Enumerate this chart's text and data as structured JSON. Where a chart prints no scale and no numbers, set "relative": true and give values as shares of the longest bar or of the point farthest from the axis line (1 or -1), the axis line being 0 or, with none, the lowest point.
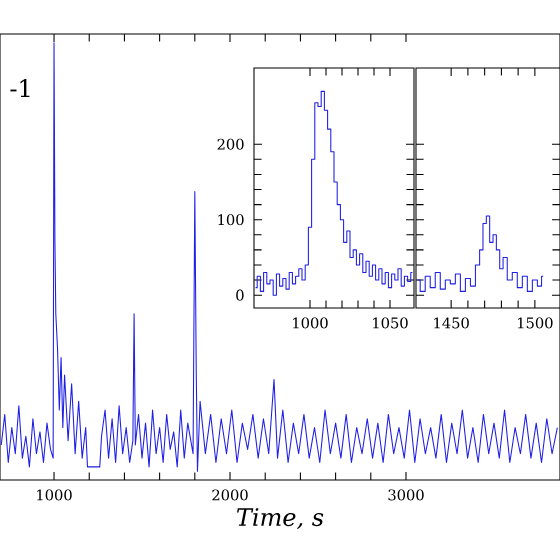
{
  "chart_data": [
    {
      "type": "line",
      "relative": true,
      "xlabel": "*Time, s*",
      "annotations": [
        "-1"
      ],
      "xlim": [
        693,
        3875
      ],
      "xticks": [
        1000,
        2000,
        3000
      ],
      "tick_labels": "x",
      "series": [
        {
          "color": "#1f1fe6",
          "x": [
            700,
            720,
            740,
            760,
            780,
            800,
            820,
            840,
            860,
            880,
            900,
            920,
            940,
            960,
            980,
            995,
            1000,
            1005,
            1010,
            1020,
            1030,
            1040,
            1050,
            1060,
            1080,
            1100,
            1120,
            1140,
            1160,
            1180,
            1190,
            1200,
            1260,
            1270,
            1290,
            1310,
            1330,
            1350,
            1370,
            1390,
            1410,
            1430,
            1448,
            1455,
            1462,
            1480,
            1500,
            1520,
            1540,
            1560,
            1580,
            1600,
            1620,
            1640,
            1660,
            1680,
            1700,
            1720,
            1740,
            1760,
            1790,
            1800,
            1808,
            1815,
            1830,
            1860,
            1890,
            1920,
            1950,
            1980,
            2010,
            2040,
            2070,
            2100,
            2130,
            2160,
            2190,
            2220,
            2250,
            2270,
            2300,
            2330,
            2360,
            2390,
            2420,
            2450,
            2480,
            2510,
            2540,
            2570,
            2600,
            2630,
            2660,
            2690,
            2720,
            2750,
            2780,
            2810,
            2840,
            2870,
            2900,
            2930,
            2960,
            2990,
            3020,
            3050,
            3080,
            3110,
            3140,
            3170,
            3200,
            3230,
            3260,
            3290,
            3320,
            3350,
            3380,
            3410,
            3440,
            3470,
            3500,
            3530,
            3560,
            3590,
            3620,
            3650,
            3680,
            3710,
            3740,
            3770,
            3800,
            3830,
            3860
          ],
          "values": [
            0.08,
            0.15,
            0.04,
            0.12,
            0.06,
            0.17,
            0.05,
            0.1,
            0.03,
            0.14,
            0.06,
            0.11,
            0.04,
            0.13,
            0.07,
            0.05,
            1.0,
            0.55,
            0.38,
            0.3,
            0.16,
            0.28,
            0.12,
            0.24,
            0.09,
            0.22,
            0.06,
            0.18,
            0.05,
            0.12,
            0.03,
            0.03,
            0.03,
            0.1,
            0.16,
            0.05,
            0.14,
            0.04,
            0.17,
            0.06,
            0.12,
            0.04,
            0.09,
            0.38,
            0.08,
            0.15,
            0.05,
            0.13,
            0.03,
            0.16,
            0.06,
            0.12,
            0.04,
            0.15,
            0.07,
            0.11,
            0.03,
            0.16,
            0.05,
            0.13,
            0.06,
            0.66,
            0.25,
            0.02,
            0.18,
            0.06,
            0.15,
            0.04,
            0.14,
            0.06,
            0.16,
            0.04,
            0.13,
            0.07,
            0.15,
            0.05,
            0.14,
            0.06,
            0.23,
            0.05,
            0.16,
            0.04,
            0.13,
            0.06,
            0.15,
            0.05,
            0.12,
            0.04,
            0.16,
            0.06,
            0.13,
            0.05,
            0.15,
            0.04,
            0.12,
            0.06,
            0.14,
            0.05,
            0.13,
            0.04,
            0.15,
            0.06,
            0.12,
            0.05,
            0.16,
            0.04,
            0.14,
            0.06,
            0.12,
            0.05,
            0.15,
            0.04,
            0.13,
            0.06,
            0.16,
            0.05,
            0.12,
            0.04,
            0.15,
            0.06,
            0.13,
            0.05,
            0.16,
            0.04,
            0.12,
            0.06,
            0.15,
            0.05,
            0.13,
            0.04,
            0.14,
            0.06,
            0.12
          ]
        }
      ]
    },
    {
      "type": "step",
      "xlim": [
        965,
        1065
      ],
      "ylim": [
        -17,
        301
      ],
      "xticks": [
        1000,
        1050
      ],
      "yticks": [
        0,
        100,
        200
      ],
      "series": [
        {
          "color": "#1f1fe6",
          "x": [
            966,
            968,
            970,
            972,
            974,
            976,
            978,
            980,
            982,
            984,
            986,
            988,
            990,
            992,
            994,
            996,
            998,
            1000,
            1002,
            1004,
            1006,
            1008,
            1010,
            1012,
            1014,
            1016,
            1018,
            1020,
            1022,
            1024,
            1026,
            1028,
            1030,
            1032,
            1034,
            1036,
            1038,
            1040,
            1042,
            1044,
            1046,
            1048,
            1050,
            1052,
            1054,
            1056,
            1058,
            1060,
            1062,
            1064
          ],
          "values": [
            10,
            25,
            5,
            30,
            15,
            20,
            0,
            28,
            12,
            22,
            8,
            30,
            15,
            25,
            35,
            20,
            40,
            90,
            180,
            255,
            250,
            270,
            245,
            220,
            190,
            150,
            120,
            100,
            70,
            85,
            50,
            60,
            40,
            55,
            30,
            45,
            25,
            40,
            20,
            35,
            15,
            30,
            10,
            28,
            20,
            35,
            12,
            25,
            18,
            30
          ]
        }
      ]
    },
    {
      "type": "step",
      "xlim": [
        1429,
        1515
      ],
      "ylim": [
        -17,
        301
      ],
      "xticks": [
        1450,
        1500
      ],
      "yticks": [
        0,
        100,
        200
      ],
      "tick_labels": "x",
      "series": [
        {
          "color": "#1f1fe6",
          "x": [
            1430,
            1433,
            1436,
            1439,
            1442,
            1445,
            1448,
            1451,
            1454,
            1457,
            1460,
            1463,
            1466,
            1468,
            1470,
            1472,
            1474,
            1476,
            1478,
            1480,
            1482,
            1485,
            1488,
            1491,
            1494,
            1497,
            1500,
            1503,
            1505
          ],
          "values": [
            20,
            5,
            25,
            10,
            30,
            8,
            20,
            15,
            28,
            5,
            22,
            12,
            40,
            60,
            95,
            105,
            70,
            80,
            60,
            35,
            50,
            20,
            30,
            10,
            25,
            5,
            20,
            12,
            25
          ]
        }
      ]
    }
  ]
}
